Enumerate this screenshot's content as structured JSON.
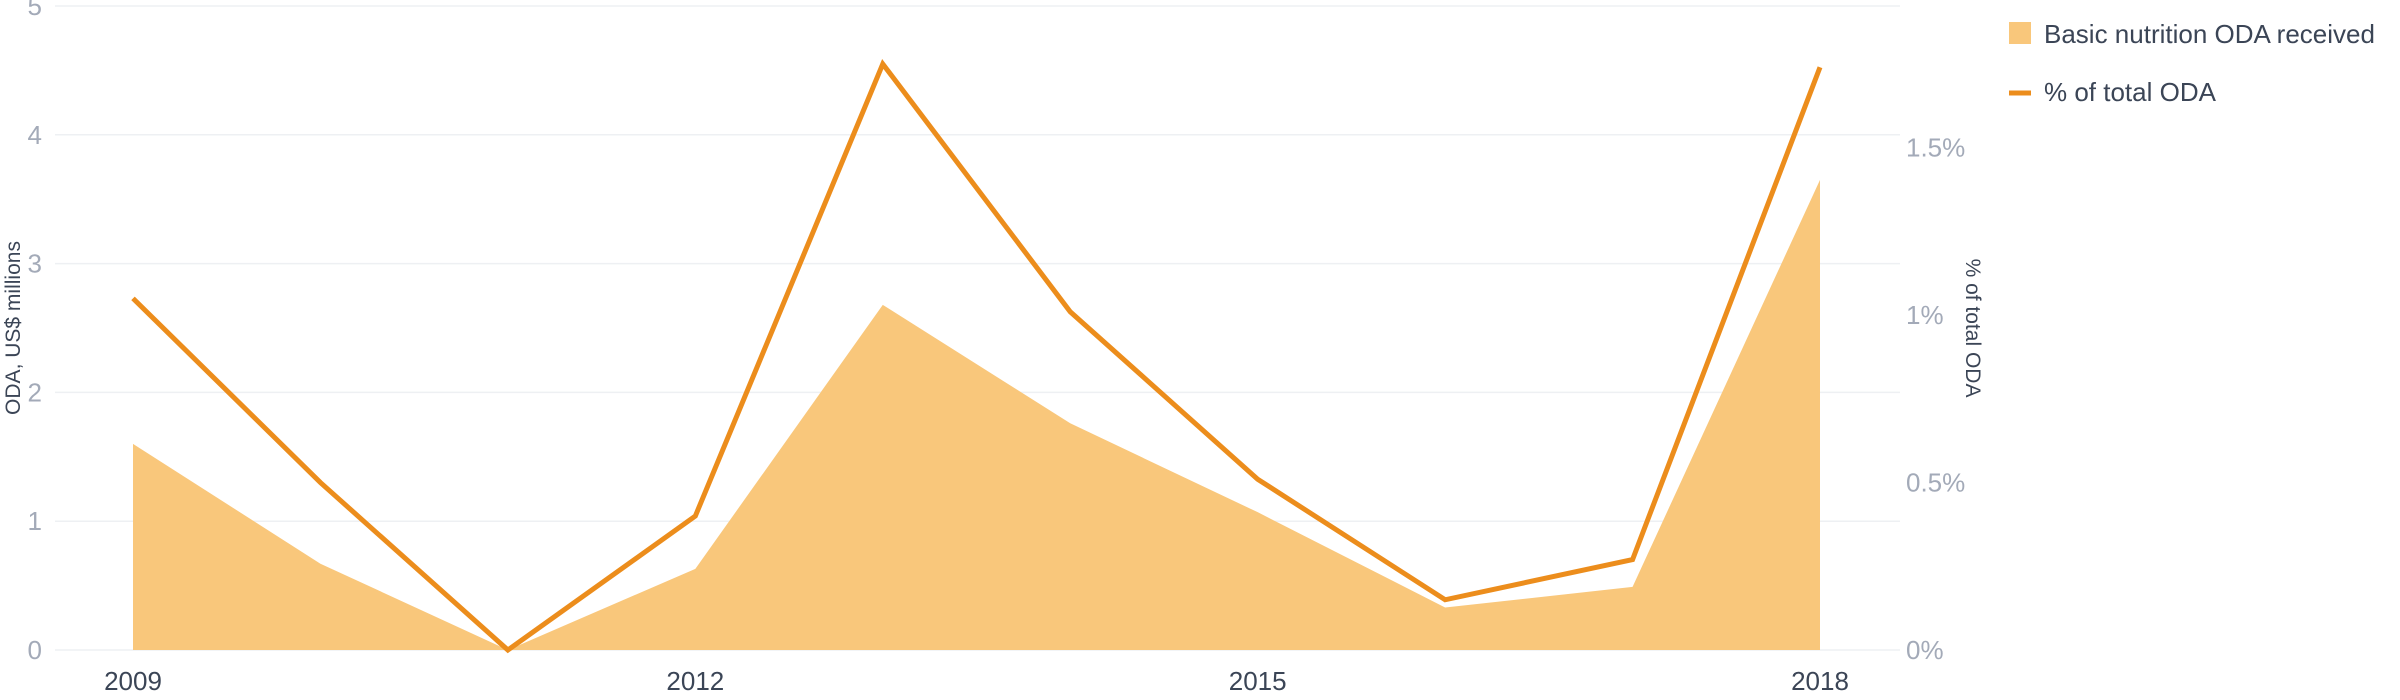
{
  "chart_data": {
    "type": "area",
    "x": [
      2009,
      2010,
      2011,
      2012,
      2013,
      2014,
      2015,
      2016,
      2017,
      2018
    ],
    "xticks": [
      "2009",
      "2012",
      "2015",
      "2018"
    ],
    "series": [
      {
        "name": "Basic nutrition ODA received",
        "kind": "area",
        "axis": "left",
        "color": "#f9c77b",
        "values": [
          1.6,
          0.67,
          0.0,
          0.63,
          2.68,
          1.76,
          1.07,
          0.33,
          0.49,
          3.65
        ]
      },
      {
        "name": "% of total ODA",
        "kind": "line",
        "axis": "right",
        "color": "#ec8d1c",
        "values": [
          1.05,
          0.5,
          0.0,
          0.4,
          1.75,
          1.01,
          0.51,
          0.15,
          0.27,
          1.74
        ]
      }
    ],
    "y_left": {
      "label": "ODA, US$ millions",
      "ticks": [
        "0",
        "1",
        "2",
        "3",
        "4",
        "5"
      ],
      "lim": [
        0,
        5
      ]
    },
    "y_right": {
      "label": "% of total ODA",
      "ticks": [
        "0%",
        "0.5%",
        "1%",
        "1.5%"
      ],
      "tick_values": [
        0,
        0.5,
        1,
        1.5
      ],
      "lim": [
        0,
        1.923
      ]
    },
    "grid": true,
    "legend_position": "top-right"
  }
}
